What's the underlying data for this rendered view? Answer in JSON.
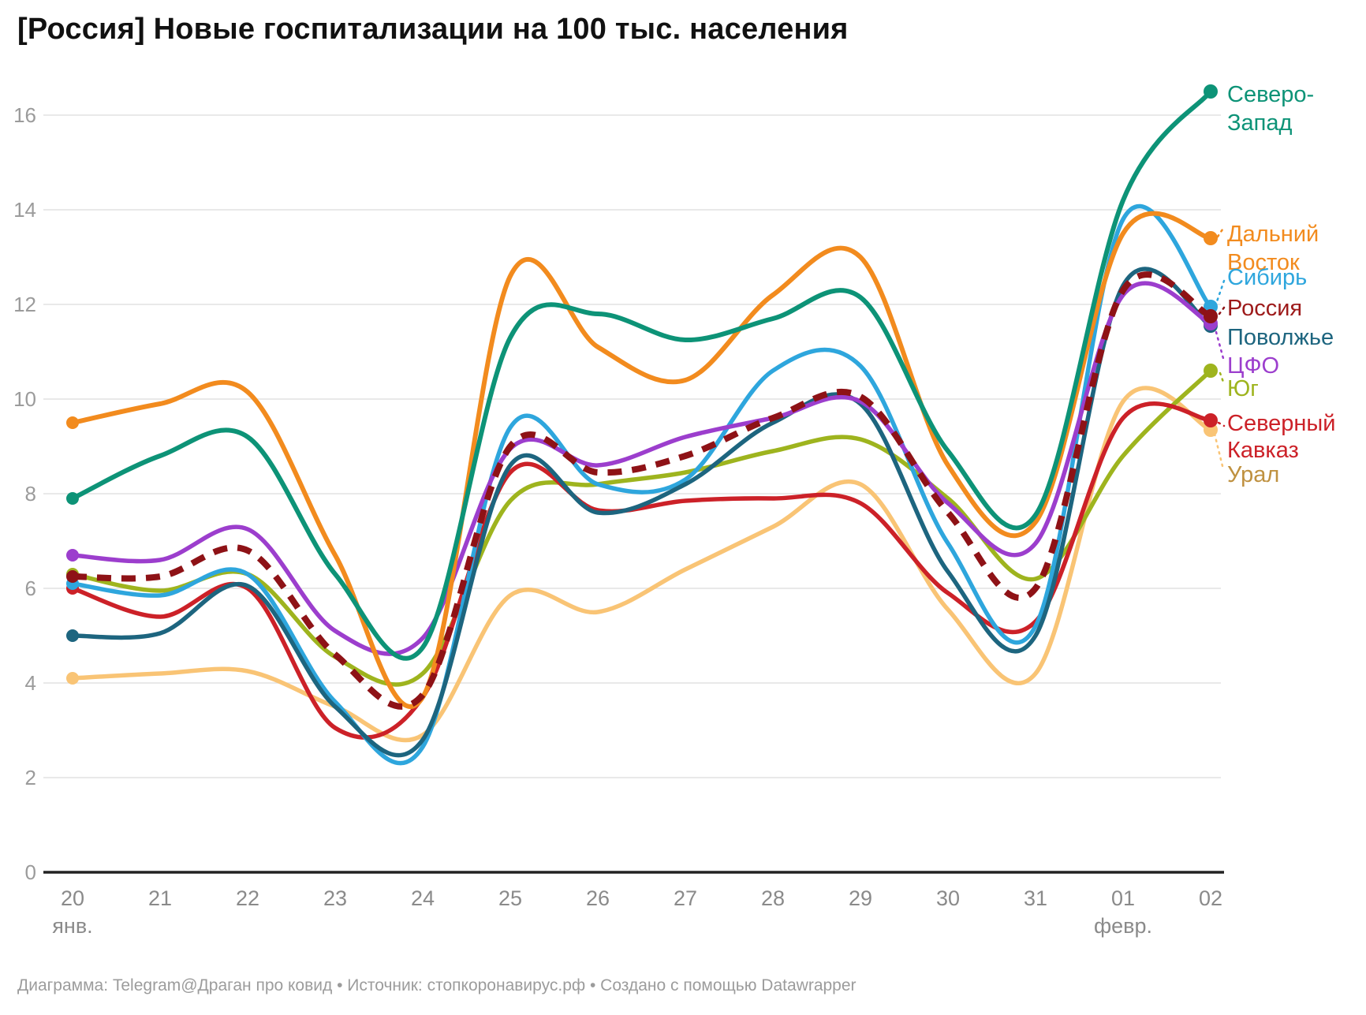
{
  "title": "[Россия] Новые госпитализации на 100 тыс. населения",
  "footer": "Диаграмма: Telegram@Драган про ковид • Источник: стопкоронавирус.рф • Создано с помощью Datawrapper",
  "chart_data": {
    "type": "line",
    "title": "[Россия] Новые госпитализации на 100 тыс. населения",
    "xlabel": "",
    "ylabel": "",
    "x_tick_labels": [
      "20",
      "21",
      "22",
      "23",
      "24",
      "25",
      "26",
      "27",
      "28",
      "29",
      "30",
      "31",
      "01",
      "02"
    ],
    "x_month_labels": [
      {
        "tick_index": 0,
        "text": "янв."
      },
      {
        "tick_index": 12,
        "text": "февр."
      }
    ],
    "ylim": [
      0,
      16
    ],
    "yticks": [
      0,
      2,
      4,
      6,
      8,
      10,
      12,
      14,
      16
    ],
    "grid": "horizontal",
    "legend_position": "right-of-line-ends",
    "series": [
      {
        "name": "Северо-Запад",
        "label_lines": [
          "Северо-",
          "Запад"
        ],
        "color": "#0d9377",
        "label_color": "#0d9377",
        "dashed": false,
        "values": [
          7.9,
          8.8,
          9.2,
          6.3,
          4.75,
          11.3,
          11.8,
          11.25,
          11.7,
          12.15,
          8.9,
          7.55,
          14.2,
          16.5
        ]
      },
      {
        "name": "Дальний Восток",
        "label_lines": [
          "Дальний",
          "Восток"
        ],
        "color": "#f28b1e",
        "label_color": "#f28b1e",
        "dashed": false,
        "values": [
          9.5,
          9.9,
          10.15,
          6.7,
          3.7,
          12.6,
          11.1,
          10.4,
          12.2,
          13.0,
          8.6,
          7.4,
          13.5,
          13.4
        ]
      },
      {
        "name": "Сибирь",
        "label_lines": [
          "Сибирь"
        ],
        "color": "#2ea6dd",
        "label_color": "#2ea6dd",
        "dashed": false,
        "values": [
          6.1,
          5.85,
          6.3,
          3.6,
          2.65,
          9.4,
          8.2,
          8.3,
          10.6,
          10.7,
          6.95,
          5.2,
          13.8,
          11.95
        ]
      },
      {
        "name": "Россия",
        "label_lines": [
          "Россия"
        ],
        "color": "#8e1216",
        "label_color": "#9d1a1a",
        "dashed": true,
        "values": [
          6.25,
          6.25,
          6.8,
          4.6,
          3.75,
          9.0,
          8.45,
          8.8,
          9.6,
          10.05,
          7.6,
          6.0,
          12.3,
          11.75
        ]
      },
      {
        "name": "Поволжье",
        "label_lines": [
          "Поволжье"
        ],
        "color": "#1d657f",
        "label_color": "#1d657f",
        "dashed": false,
        "values": [
          5.0,
          5.05,
          6.05,
          3.5,
          2.8,
          8.6,
          7.6,
          8.2,
          9.5,
          9.9,
          6.35,
          5.0,
          12.4,
          11.55
        ]
      },
      {
        "name": "ЦФО",
        "label_lines": [
          "ЦФО"
        ],
        "color": "#9c3ecd",
        "label_color": "#9c3ecd",
        "dashed": false,
        "values": [
          6.7,
          6.6,
          7.25,
          5.1,
          4.95,
          8.95,
          8.6,
          9.2,
          9.6,
          9.95,
          7.8,
          6.95,
          12.2,
          11.6
        ]
      },
      {
        "name": "Юг",
        "label_lines": [
          "Юг"
        ],
        "color": "#9eb41e",
        "label_color": "#9eb41e",
        "dashed": false,
        "values": [
          6.3,
          5.95,
          6.3,
          4.55,
          4.2,
          7.85,
          8.2,
          8.45,
          8.9,
          9.15,
          7.9,
          6.2,
          8.8,
          10.6
        ]
      },
      {
        "name": "Северный Кавказ",
        "label_lines": [
          "Северный",
          "Кавказ"
        ],
        "color": "#cc2128",
        "label_color": "#cc2128",
        "dashed": false,
        "values": [
          6.0,
          5.4,
          6.0,
          3.05,
          3.7,
          8.45,
          7.65,
          7.85,
          7.9,
          7.8,
          5.9,
          5.3,
          9.6,
          9.55
        ]
      },
      {
        "name": "Урал",
        "label_lines": [
          "Урал"
        ],
        "color": "#f9c475",
        "label_color": "#bf9140",
        "dashed": false,
        "values": [
          4.1,
          4.2,
          4.25,
          3.5,
          2.9,
          5.85,
          5.5,
          6.4,
          7.3,
          8.2,
          5.55,
          4.2,
          9.95,
          9.35
        ]
      }
    ]
  }
}
